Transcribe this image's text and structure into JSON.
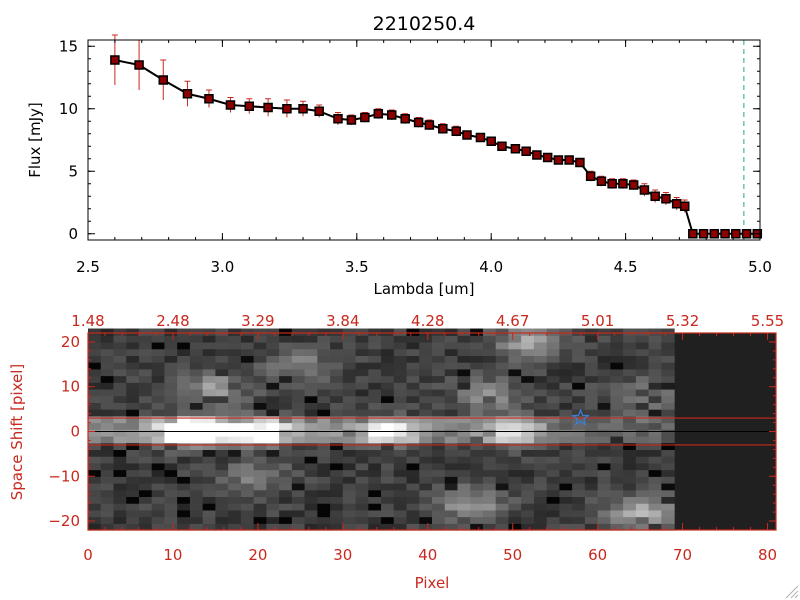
{
  "colors": {
    "ink": "#000000",
    "red": "#c8281e",
    "marker": "#8b0000",
    "dashed_line": "#2aa198",
    "star": "#3b7fd9",
    "panel_background": "#202020"
  },
  "chart_data": [
    {
      "type": "line",
      "title": "2210250.4",
      "xlabel": "Lambda [um]",
      "ylabel": "Flux [mJy]",
      "xlim": [
        2.5,
        5.0
      ],
      "ylim": [
        -0.5,
        15.5
      ],
      "x_ticks": [
        2.5,
        3.0,
        3.5,
        4.0,
        4.5,
        5.0
      ],
      "x_tick_labels": [
        "2.5",
        "3.0",
        "3.5",
        "4.0",
        "4.5",
        "5.0"
      ],
      "y_ticks": [
        0,
        5,
        10,
        15
      ],
      "y_tick_labels": [
        "0",
        "5",
        "10",
        "15"
      ],
      "grid": false,
      "reference_line_x": 4.94,
      "series": [
        {
          "name": "flux",
          "x": [
            2.6,
            2.69,
            2.78,
            2.87,
            2.95,
            3.03,
            3.1,
            3.17,
            3.24,
            3.3,
            3.36,
            3.43,
            3.48,
            3.53,
            3.58,
            3.63,
            3.68,
            3.73,
            3.77,
            3.82,
            3.87,
            3.91,
            3.96,
            4.0,
            4.04,
            4.09,
            4.13,
            4.17,
            4.21,
            4.25,
            4.29,
            4.33,
            4.37,
            4.41,
            4.45,
            4.49,
            4.53,
            4.57,
            4.61,
            4.65,
            4.69,
            4.72,
            4.75,
            4.79,
            4.83,
            4.87,
            4.91,
            4.95,
            4.99
          ],
          "values": [
            13.9,
            13.5,
            12.3,
            11.2,
            10.8,
            10.3,
            10.2,
            10.1,
            10.0,
            10.0,
            9.8,
            9.2,
            9.1,
            9.3,
            9.6,
            9.5,
            9.2,
            8.9,
            8.7,
            8.4,
            8.2,
            7.9,
            7.7,
            7.4,
            7.0,
            6.8,
            6.6,
            6.3,
            6.1,
            5.9,
            5.9,
            5.7,
            4.6,
            4.2,
            4.0,
            4.0,
            3.9,
            3.5,
            3.0,
            2.8,
            2.4,
            2.2,
            0.0,
            0.0,
            0.0,
            0.0,
            0.0,
            0.0,
            0.0
          ],
          "errors": [
            2.0,
            2.0,
            1.6,
            1.0,
            0.7,
            0.6,
            0.6,
            0.7,
            0.7,
            0.6,
            0.5,
            0.5,
            0.4,
            0.4,
            0.4,
            0.4,
            0.4,
            0.4,
            0.4,
            0.4,
            0.4,
            0.3,
            0.3,
            0.3,
            0.3,
            0.3,
            0.3,
            0.3,
            0.3,
            0.3,
            0.3,
            0.3,
            0.4,
            0.4,
            0.4,
            0.4,
            0.4,
            0.5,
            0.5,
            0.5,
            0.5,
            0.5,
            0.2,
            0.2,
            0.2,
            0.2,
            0.2,
            0.2,
            0.2
          ]
        }
      ]
    },
    {
      "type": "heatmap",
      "xlabel": "Pixel",
      "ylabel": "Space Shift [pixel]",
      "xlim": [
        0,
        81
      ],
      "ylim": [
        -22,
        22
      ],
      "x_ticks": [
        0,
        10,
        20,
        30,
        40,
        50,
        60,
        70,
        80
      ],
      "x_tick_labels": [
        "0",
        "10",
        "20",
        "30",
        "40",
        "50",
        "60",
        "70",
        "80"
      ],
      "y_ticks": [
        -20,
        -10,
        0,
        10,
        20
      ],
      "y_tick_labels": [
        "−20",
        "−10",
        "0",
        "10",
        "20"
      ],
      "top_axis_positions": [
        0,
        10,
        20,
        30,
        40,
        50,
        60,
        70,
        80
      ],
      "top_axis_labels": [
        "1.48",
        "2.48",
        "3.29",
        "3.84",
        "4.28",
        "4.67",
        "5.01",
        "5.32",
        "5.55"
      ],
      "extraction_aperture": [
        -3,
        3
      ],
      "center_line": 0,
      "data_extent_pixel": [
        0,
        69
      ],
      "star_marker": [
        58,
        3
      ],
      "features": [
        {
          "x": 12,
          "y": 0,
          "value": 1.0
        },
        {
          "x": 20,
          "y": 0,
          "value": 0.75
        },
        {
          "x": 35,
          "y": 0,
          "value": 0.6
        },
        {
          "x": 50,
          "y": 0,
          "value": 0.5
        },
        {
          "x": 15,
          "y": 10,
          "value": 0.35
        },
        {
          "x": 25,
          "y": 15,
          "value": 0.25
        },
        {
          "x": 52,
          "y": 20,
          "value": 0.4
        },
        {
          "x": 47,
          "y": 8,
          "value": 0.3
        },
        {
          "x": 65,
          "y": 8,
          "value": 0.25
        },
        {
          "x": 45,
          "y": -16,
          "value": 0.35
        },
        {
          "x": 65,
          "y": -18,
          "value": 0.45
        },
        {
          "x": 20,
          "y": -10,
          "value": 0.25
        }
      ]
    }
  ]
}
